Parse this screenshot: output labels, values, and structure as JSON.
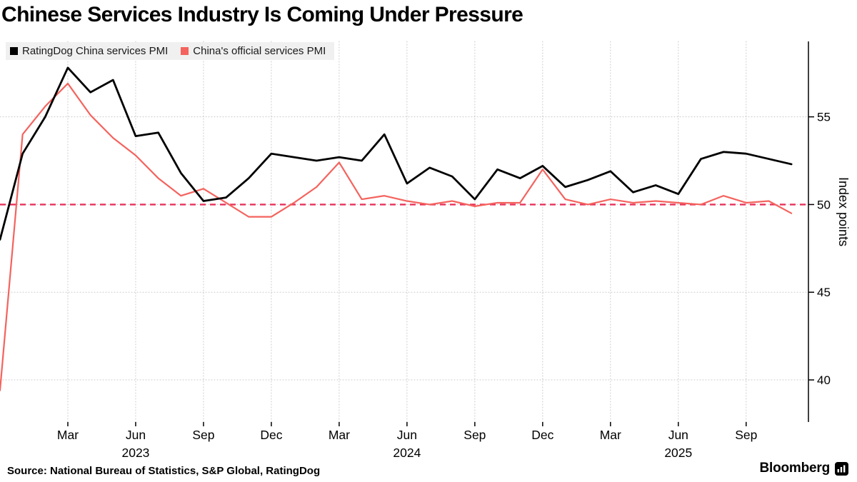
{
  "page": {
    "title": "Chinese Services Industry Is Coming Under Pressure",
    "source": "Source: National Bureau of Statistics, S&P Global, RatingDog",
    "brand": "Bloomberg"
  },
  "legend": [
    {
      "label": "RatingDog China services PMI",
      "color": "#000000"
    },
    {
      "label": "China's official services PMI",
      "color": "#F4635E"
    }
  ],
  "chart_data": {
    "type": "line",
    "title": "Chinese Services Industry Is Coming Under Pressure",
    "ylabel": "Index points",
    "x_unit": "month",
    "x": [
      "Dec 2022",
      "Jan 2023",
      "Feb 2023",
      "Mar 2023",
      "Apr 2023",
      "May 2023",
      "Jun 2023",
      "Jul 2023",
      "Aug 2023",
      "Sep 2023",
      "Oct 2023",
      "Nov 2023",
      "Dec 2023",
      "Jan 2024",
      "Feb 2024",
      "Mar 2024",
      "Apr 2024",
      "May 2024",
      "Jun 2024",
      "Jul 2024",
      "Aug 2024",
      "Sep 2024",
      "Oct 2024",
      "Nov 2024",
      "Dec 2024",
      "Jan 2025",
      "Feb 2025",
      "Mar 2025",
      "Apr 2025",
      "May 2025",
      "Jun 2025",
      "Jul 2025",
      "Aug 2025",
      "Sep 2025",
      "Oct 2025",
      "Nov 2025"
    ],
    "series": [
      {
        "name": "RatingDog China services PMI",
        "color": "#000000",
        "values": [
          48.0,
          52.9,
          55.0,
          57.8,
          56.4,
          57.1,
          53.9,
          54.1,
          51.8,
          50.2,
          50.4,
          51.5,
          52.9,
          52.7,
          52.5,
          52.7,
          52.5,
          54.0,
          51.2,
          52.1,
          51.6,
          50.3,
          52.0,
          51.5,
          52.2,
          51.0,
          51.4,
          51.9,
          50.7,
          51.1,
          50.6,
          52.6,
          53.0,
          52.9,
          52.6,
          52.3
        ]
      },
      {
        "name": "China's official services PMI",
        "color": "#F4635E",
        "values": [
          39.4,
          54.0,
          55.6,
          56.9,
          55.1,
          53.8,
          52.8,
          51.5,
          50.5,
          50.9,
          50.1,
          49.3,
          49.3,
          50.1,
          51.0,
          52.4,
          50.3,
          50.5,
          50.2,
          50.0,
          50.2,
          49.9,
          50.1,
          50.1,
          52.0,
          50.3,
          50.0,
          50.3,
          50.1,
          50.2,
          50.1,
          50.0,
          50.5,
          50.1,
          50.2,
          49.5
        ]
      }
    ],
    "baseline": {
      "value": 50,
      "color": "#E8325A",
      "style": "dashed"
    },
    "yticks": [
      40,
      45,
      50,
      55
    ],
    "ylim": [
      37.6,
      59.3
    ],
    "xticks": [
      {
        "label": "Mar",
        "index": 3
      },
      {
        "label": "Jun",
        "index": 6
      },
      {
        "label": "Sep",
        "index": 9
      },
      {
        "label": "Dec",
        "index": 12
      },
      {
        "label": "Mar",
        "index": 15
      },
      {
        "label": "Jun",
        "index": 18
      },
      {
        "label": "Sep",
        "index": 21
      },
      {
        "label": "Dec",
        "index": 24
      },
      {
        "label": "Mar",
        "index": 27
      },
      {
        "label": "Jun",
        "index": 30
      },
      {
        "label": "Sep",
        "index": 33
      }
    ],
    "year_labels": [
      {
        "label": "2023",
        "index": 6
      },
      {
        "label": "2024",
        "index": 18
      },
      {
        "label": "2025",
        "index": 30
      }
    ],
    "grid": "dotted",
    "legend_position": "top-left",
    "y_axis_side": "right"
  }
}
